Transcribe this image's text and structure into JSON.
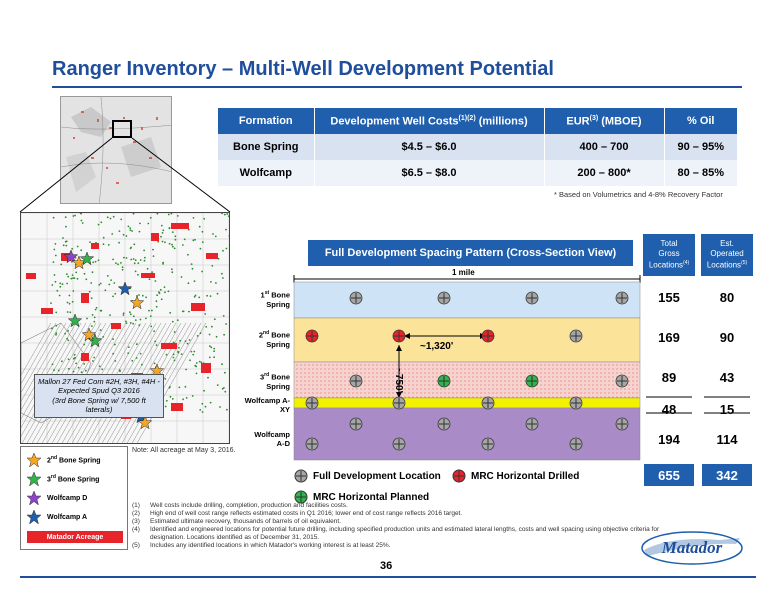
{
  "title": "Ranger Inventory – Multi-Well Development Potential",
  "table": {
    "headers": [
      "Formation",
      "Development Well Costs",
      "EUR",
      "% Oil"
    ],
    "header_sup": {
      "costs": "(1)(2)",
      "costs_suffix": " (millions)",
      "eur": "(3)",
      "eur_suffix": " (MBOE)"
    },
    "rows": [
      {
        "formation": "Bone Spring",
        "costs": "$4.5 – $6.0",
        "eur": "400 – 700",
        "oil": "90 – 95%"
      },
      {
        "formation": "Wolfcamp",
        "costs": "$6.5 – $8.0",
        "eur": "200 – 800*",
        "oil": "80 – 85%"
      }
    ],
    "footnote": "* Based on Volumetrics and 4-8% Recovery Factor"
  },
  "cross_section": {
    "header": "Full Development Spacing Pattern (Cross-Section View)",
    "mile_label": "1 mile",
    "spacing_label": "~1,320'",
    "vertical_label": "~750'",
    "col_total": {
      "line1": "Total",
      "line2": "Gross",
      "line3": "Locations",
      "sup": "(4)"
    },
    "col_operated": {
      "line1": "Est.",
      "line2": "Operated",
      "line3": "Locations",
      "sup": "(5)"
    },
    "layers": [
      {
        "label_sup": "st",
        "label_a": "1",
        "label_b": " Bone",
        "label_c": "Spring",
        "total": "155",
        "operated": "80",
        "color": "#cfe3f7"
      },
      {
        "label_sup": "nd",
        "label_a": "2",
        "label_b": " Bone",
        "label_c": "Spring",
        "total": "169",
        "operated": "90",
        "color": "#fbe39a"
      },
      {
        "label_sup": "rd",
        "label_a": "3",
        "label_b": " Bone",
        "label_c": "Spring",
        "total": "89",
        "operated": "43",
        "color": "#f7d3d0"
      },
      {
        "label_a": "Wolfcamp A-",
        "label_c": "XY",
        "total": "48",
        "operated": "15",
        "color": "#f2f200"
      },
      {
        "label_a": "Wolfcamp",
        "label_c": "A-D",
        "total": "194",
        "operated": "114",
        "color": "#a98bc7"
      }
    ],
    "totals": {
      "gross": "655",
      "operated": "342"
    },
    "legend": {
      "full": "Full Development Location",
      "drilled": "MRC Horizontal Drilled",
      "planned": "MRC Horizontal Planned"
    }
  },
  "map": {
    "callout_line1": "Mallon 27 Fed Com #2H, #3H, #4H -",
    "callout_line2": "Expected Spud Q3 2016",
    "callout_line3": "(3rd Bone Spring w/ 7,500 ft laterals)",
    "acreage_note": "Note: All acreage at May 3, 2016.",
    "legend": [
      {
        "sup": "nd",
        "label_a": "2",
        "label_b": " Bone Spring",
        "color": "#f5a623"
      },
      {
        "sup": "rd",
        "label_a": "3",
        "label_b": " Bone Spring",
        "color": "#2fb34a"
      },
      {
        "label_a": "Wolfcamp D",
        "color": "#8e44c9"
      },
      {
        "label_a": "Wolfcamp A",
        "color": "#1f5fad"
      }
    ],
    "acreage_label": "Matador Acreage"
  },
  "footnotes": [
    {
      "num": "(1)",
      "text": "Well costs include drilling, completion, production and facilities costs."
    },
    {
      "num": "(2)",
      "text": "High end of well cost range reflects estimated costs in Q1 2016; lower end of cost range reflects 2016 target."
    },
    {
      "num": "(3)",
      "text": "Estimated ultimate recovery, thousands of barrels of oil equivalent."
    },
    {
      "num": "(4)",
      "text": "Identified and engineered locations for potential future drilling, including specified production units and estimated lateral lengths, costs and well spacing using objective criteria for designation.  Locations identified as of December 31, 2015."
    },
    {
      "num": "(5)",
      "text": "Includes any identified locations in which Matador's working interest is at least 25%."
    }
  ],
  "page_number": "36",
  "logo_text": "Matador",
  "colors": {
    "brand_blue": "#1f5fad",
    "drilled_red": "#e8242b",
    "planned_green": "#2fb34a"
  }
}
